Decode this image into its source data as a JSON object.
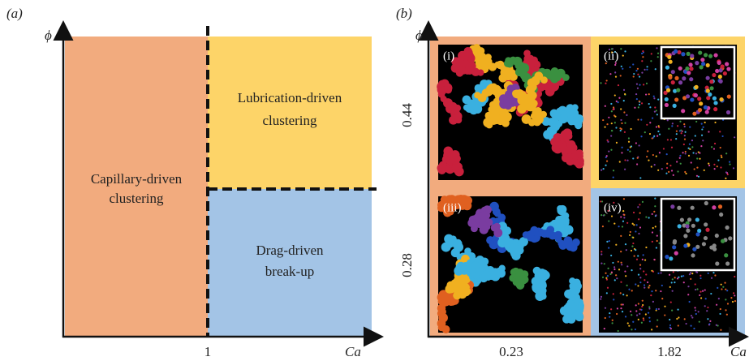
{
  "panel_a": {
    "label": "(a)",
    "y_axis_label": "ϕ",
    "x_axis_label": "Ca",
    "x_tick": "1",
    "regions": {
      "lubrication": [
        "Lubrication-driven",
        "clustering"
      ],
      "capillary": [
        "Capillary-driven",
        "clustering"
      ],
      "drag": [
        "Drag-driven",
        "break-up"
      ]
    }
  },
  "panel_b": {
    "label": "(b)",
    "y_axis_label": "ϕ",
    "x_axis_label": "Ca",
    "x_ticks": [
      "0.23",
      "1.82"
    ],
    "y_ticks": [
      "0.44",
      "0.28"
    ],
    "images": [
      "(i)",
      "(ii)",
      "(iii)",
      "(iv)"
    ]
  }
}
